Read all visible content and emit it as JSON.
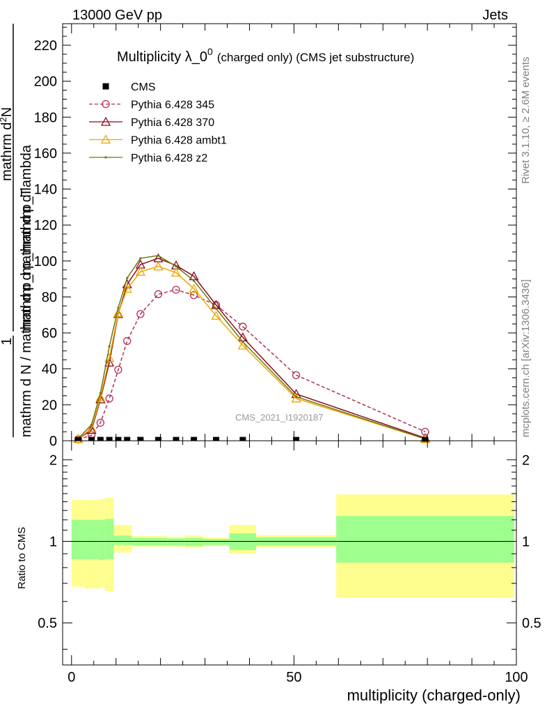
{
  "header": {
    "left": "13000 GeV pp",
    "right": "Jets"
  },
  "side_labels": {
    "rivet": "Rivet 3.1.10, ≥ 2.6M events",
    "mcplots": "mcplots.cern.ch [arXiv:1306.3436]"
  },
  "chart_data": [
    {
      "type": "line",
      "title_main": "Multiplicity λ_0",
      "title_sup": "0",
      "title_sub": "(charged only) (CMS jet substructure)",
      "watermark": "CMS_2021_I1920187",
      "ylabel_numerator": "mathrm d",
      "ylabel_numerator_sup": "2",
      "ylabel_numerator_end": "N",
      "ylabel_den": "mathrm d p_mathrm d lambda",
      "ylabel_prefactor_num": "1",
      "ylabel_prefactor_den": "mathrm d N / mathrm d p_mathrm d p_T",
      "ylabel_full_left": "mathrm d N / mathrm d p_mathrm d p_T",
      "ylabel_full_top": "mathrm d²N / mathrm d p_T mathrm d lambda",
      "ylim": [
        0,
        232
      ],
      "xlim": [
        -2,
        100
      ],
      "yticks": [
        0,
        20,
        40,
        60,
        80,
        100,
        120,
        140,
        160,
        180,
        200,
        220
      ],
      "legend": {
        "position": "top-left",
        "entries": [
          {
            "label": "CMS",
            "color": "#000000",
            "marker": "square",
            "dashed": false
          },
          {
            "label": "Pythia 6.428 345",
            "color": "#b03050",
            "marker": "circle",
            "dashed": true
          },
          {
            "label": "Pythia 6.428 370",
            "color": "#8b0a1e",
            "marker": "triangle",
            "dashed": false
          },
          {
            "label": "Pythia 6.428 ambt1",
            "color": "#f0a500",
            "marker": "triangle",
            "dashed": false
          },
          {
            "label": "Pythia 6.428 z2",
            "color": "#6b7a10",
            "marker": "dot",
            "dashed": false
          }
        ]
      },
      "cms_points": {
        "x": [
          1.5,
          4.5,
          6.5,
          8.5,
          10.5,
          12.5,
          15.5,
          19.5,
          23.5,
          27.5,
          32.5,
          38.5,
          50.5,
          79.5
        ],
        "y": [
          0,
          0,
          0,
          0,
          0,
          0,
          0,
          0,
          0,
          0,
          0,
          0,
          0,
          0
        ]
      },
      "series": [
        {
          "name": "Pythia 6.428 345",
          "color": "#b03050",
          "x": [
            1.5,
            4.5,
            6.5,
            8.5,
            10.5,
            12.5,
            15.5,
            19.5,
            23.5,
            27.5,
            32.5,
            38.5,
            50.5,
            79.5
          ],
          "y": [
            0.8,
            3,
            10,
            23.5,
            39.5,
            55.5,
            70.5,
            81.5,
            84,
            81,
            75.5,
            63.5,
            36.5,
            5
          ]
        },
        {
          "name": "Pythia 6.428 370",
          "color": "#8b0a1e",
          "x": [
            1.5,
            4.5,
            6.5,
            8.5,
            10.5,
            12.5,
            15.5,
            19.5,
            23.5,
            27.5,
            32.5,
            38.5,
            50.5,
            79.5
          ],
          "y": [
            1,
            6,
            23,
            43.5,
            70.5,
            87,
            98,
            101.5,
            97.5,
            91.5,
            75.5,
            57.5,
            26,
            1.5
          ]
        },
        {
          "name": "Pythia 6.428 ambt1",
          "color": "#f0a500",
          "x": [
            1.5,
            4.5,
            6.5,
            8.5,
            10.5,
            12.5,
            15.5,
            19.5,
            23.5,
            27.5,
            32.5,
            38.5,
            50.5,
            79.5
          ],
          "y": [
            1,
            7,
            24,
            46,
            71,
            84.5,
            94,
            97,
            93.5,
            84.5,
            69.5,
            53,
            23.5,
            1
          ]
        },
        {
          "name": "Pythia 6.428 z2",
          "color": "#6b7a10",
          "x": [
            1.5,
            4.5,
            6.5,
            8.5,
            10.5,
            12.5,
            15.5,
            19.5,
            23.5,
            27.5,
            32.5,
            38.5,
            50.5,
            79.5
          ],
          "y": [
            1.2,
            9,
            26.5,
            52.5,
            74,
            90.5,
            101.5,
            103,
            97,
            89,
            73.5,
            55,
            24.5,
            1
          ]
        }
      ]
    },
    {
      "type": "area",
      "ylabel": "Ratio to CMS",
      "xlabel": "multiplicity (charged-only)",
      "ylim": [
        0.35,
        2.35
      ],
      "log_y": true,
      "yticks": [
        0.5,
        1,
        2
      ],
      "xticks": [
        0,
        50,
        100
      ],
      "xlim": [
        -2,
        100
      ],
      "reference": 1,
      "bands": [
        {
          "xlo": 0,
          "xhi": 3,
          "stat_lo": 0.86,
          "stat_hi": 1.2,
          "tot_lo": 0.68,
          "tot_hi": 1.42
        },
        {
          "xlo": 3,
          "xhi": 6,
          "stat_lo": 0.86,
          "stat_hi": 1.2,
          "tot_lo": 0.67,
          "tot_hi": 1.42
        },
        {
          "xlo": 6,
          "xhi": 7.5,
          "stat_lo": 0.855,
          "stat_hi": 1.2,
          "tot_lo": 0.675,
          "tot_hi": 1.43
        },
        {
          "xlo": 7.5,
          "xhi": 9.5,
          "stat_lo": 0.86,
          "stat_hi": 1.21,
          "tot_lo": 0.655,
          "tot_hi": 1.45
        },
        {
          "xlo": 9.5,
          "xhi": 13.5,
          "stat_lo": 0.97,
          "stat_hi": 1.05,
          "tot_lo": 0.91,
          "tot_hi": 1.15
        },
        {
          "xlo": 13.5,
          "xhi": 21.5,
          "stat_lo": 0.965,
          "stat_hi": 1.03,
          "tot_lo": 0.955,
          "tot_hi": 1.045
        },
        {
          "xlo": 21.5,
          "xhi": 25.5,
          "stat_lo": 0.965,
          "stat_hi": 1.025,
          "tot_lo": 0.955,
          "tot_hi": 1.04
        },
        {
          "xlo": 25.5,
          "xhi": 29.5,
          "stat_lo": 0.96,
          "stat_hi": 1.03,
          "tot_lo": 0.945,
          "tot_hi": 1.05
        },
        {
          "xlo": 29.5,
          "xhi": 35.5,
          "stat_lo": 0.97,
          "stat_hi": 1.02,
          "tot_lo": 0.96,
          "tot_hi": 1.035
        },
        {
          "xlo": 35.5,
          "xhi": 41.5,
          "stat_lo": 0.93,
          "stat_hi": 1.07,
          "tot_lo": 0.9,
          "tot_hi": 1.15
        },
        {
          "xlo": 41.5,
          "xhi": 59.5,
          "stat_lo": 0.965,
          "stat_hi": 1.035,
          "tot_lo": 0.95,
          "tot_hi": 1.055
        },
        {
          "xlo": 59.5,
          "xhi": 99.5,
          "stat_lo": 0.835,
          "stat_hi": 1.24,
          "tot_lo": 0.62,
          "tot_hi": 1.49
        }
      ],
      "colors": {
        "stat": "#9efe8e",
        "total": "#fefe8e"
      }
    }
  ]
}
